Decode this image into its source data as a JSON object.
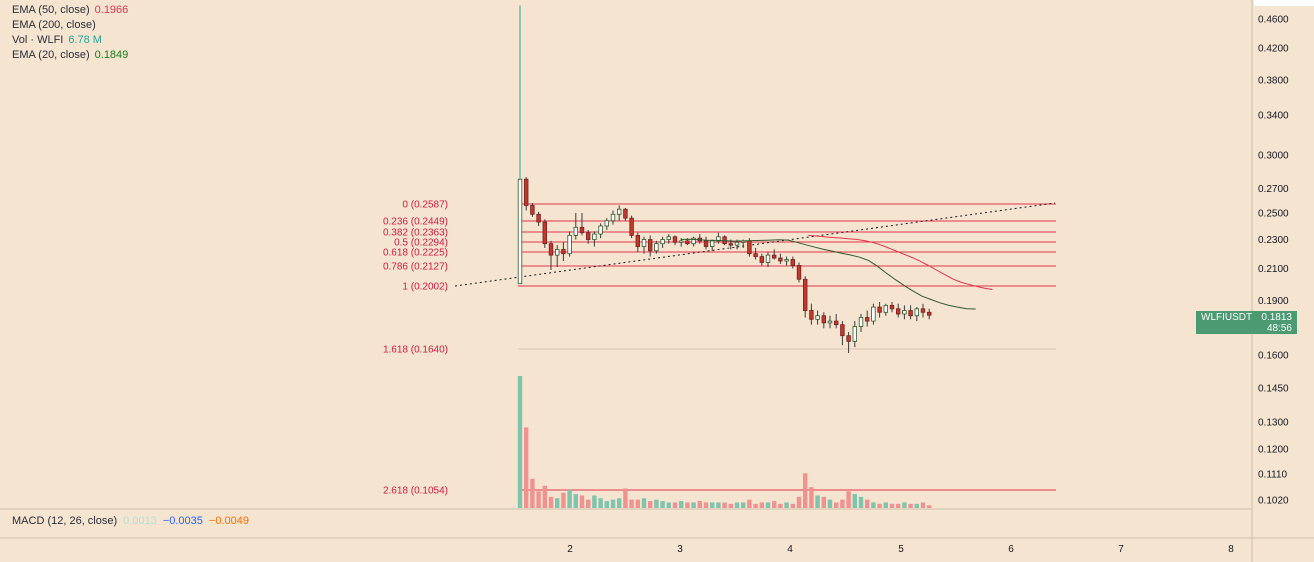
{
  "legend": {
    "ema50": {
      "label": "EMA (50, close)",
      "value": "0.1966",
      "color": "#e5334d"
    },
    "ema200": {
      "label": "EMA (200, close)",
      "value": ""
    },
    "vol": {
      "label": "Vol · WLFI",
      "value": "6.78 M",
      "color": "#26a69a"
    },
    "ema20": {
      "label": "EMA (20, close)",
      "value": "0.1849",
      "color": "#1b7a1b"
    }
  },
  "macd": {
    "label": "MACD (12, 26, close)",
    "v1": "0.0013",
    "v2": "−0.0035",
    "v3": "−0.0049",
    "v1_color": "#b2dfdb",
    "v2_color": "#2962ff",
    "v3_color": "#ff6d00"
  },
  "badge": {
    "symbol": "WLFIUSDT",
    "price": "0.1813",
    "countdown": "48:56"
  },
  "chart_data": {
    "type": "candlestick",
    "symbol": "WLFIUSDT",
    "scale": "log",
    "y_ticks": [
      "0.4600",
      "0.4200",
      "0.3800",
      "0.3400",
      "0.3000",
      "0.2700",
      "0.2500",
      "0.2300",
      "0.2100",
      "0.1900",
      "0.1600",
      "0.1450",
      "0.1300",
      "0.1200",
      "0.1110",
      "0.1020"
    ],
    "x_ticks": [
      "2",
      "3",
      "4",
      "5",
      "6",
      "7",
      "8"
    ],
    "last_price": 0.1813,
    "fib_levels": [
      {
        "label": "0 (0.2587)",
        "value": 0.2587
      },
      {
        "label": "0.236 (0.2449)",
        "value": 0.2449
      },
      {
        "label": "0.382 (0.2363)",
        "value": 0.2363
      },
      {
        "label": "0.5 (0.2294)",
        "value": 0.2294
      },
      {
        "label": "0.618 (0.2225)",
        "value": 0.2225
      },
      {
        "label": "0.786 (0.2127)",
        "value": 0.2127
      },
      {
        "label": "1 (0.2002)",
        "value": 0.2002
      },
      {
        "label": "1.618 (0.1640)",
        "value": 0.164
      },
      {
        "label": "2.618 (0.1054)",
        "value": 0.1054
      }
    ],
    "candles": [
      {
        "o": 0.2002,
        "h": 0.48,
        "l": 0.2,
        "c": 0.278
      },
      {
        "o": 0.278,
        "h": 0.28,
        "l": 0.252,
        "c": 0.256
      },
      {
        "o": 0.256,
        "h": 0.258,
        "l": 0.247,
        "c": 0.249
      },
      {
        "o": 0.249,
        "h": 0.251,
        "l": 0.24,
        "c": 0.243
      },
      {
        "o": 0.243,
        "h": 0.245,
        "l": 0.224,
        "c": 0.227
      },
      {
        "o": 0.227,
        "h": 0.229,
        "l": 0.209,
        "c": 0.219
      },
      {
        "o": 0.219,
        "h": 0.226,
        "l": 0.211,
        "c": 0.223
      },
      {
        "o": 0.223,
        "h": 0.228,
        "l": 0.215,
        "c": 0.22
      },
      {
        "o": 0.22,
        "h": 0.236,
        "l": 0.218,
        "c": 0.233
      },
      {
        "o": 0.233,
        "h": 0.25,
        "l": 0.23,
        "c": 0.239
      },
      {
        "o": 0.239,
        "h": 0.25,
        "l": 0.233,
        "c": 0.235
      },
      {
        "o": 0.235,
        "h": 0.237,
        "l": 0.227,
        "c": 0.23
      },
      {
        "o": 0.23,
        "h": 0.236,
        "l": 0.225,
        "c": 0.234
      },
      {
        "o": 0.234,
        "h": 0.242,
        "l": 0.231,
        "c": 0.24
      },
      {
        "o": 0.24,
        "h": 0.246,
        "l": 0.237,
        "c": 0.244
      },
      {
        "o": 0.244,
        "h": 0.252,
        "l": 0.241,
        "c": 0.249
      },
      {
        "o": 0.249,
        "h": 0.256,
        "l": 0.244,
        "c": 0.253
      },
      {
        "o": 0.253,
        "h": 0.254,
        "l": 0.244,
        "c": 0.246
      },
      {
        "o": 0.246,
        "h": 0.248,
        "l": 0.231,
        "c": 0.233
      },
      {
        "o": 0.233,
        "h": 0.235,
        "l": 0.221,
        "c": 0.225
      },
      {
        "o": 0.225,
        "h": 0.232,
        "l": 0.22,
        "c": 0.23
      },
      {
        "o": 0.23,
        "h": 0.233,
        "l": 0.218,
        "c": 0.222
      },
      {
        "o": 0.222,
        "h": 0.229,
        "l": 0.22,
        "c": 0.227
      },
      {
        "o": 0.227,
        "h": 0.232,
        "l": 0.224,
        "c": 0.23
      },
      {
        "o": 0.23,
        "h": 0.234,
        "l": 0.227,
        "c": 0.232
      },
      {
        "o": 0.232,
        "h": 0.233,
        "l": 0.226,
        "c": 0.228
      },
      {
        "o": 0.228,
        "h": 0.231,
        "l": 0.225,
        "c": 0.229
      },
      {
        "o": 0.229,
        "h": 0.231,
        "l": 0.226,
        "c": 0.227
      },
      {
        "o": 0.227,
        "h": 0.232,
        "l": 0.225,
        "c": 0.231
      },
      {
        "o": 0.231,
        "h": 0.234,
        "l": 0.227,
        "c": 0.229
      },
      {
        "o": 0.229,
        "h": 0.232,
        "l": 0.223,
        "c": 0.225
      },
      {
        "o": 0.225,
        "h": 0.23,
        "l": 0.222,
        "c": 0.229
      },
      {
        "o": 0.229,
        "h": 0.235,
        "l": 0.227,
        "c": 0.232
      },
      {
        "o": 0.232,
        "h": 0.233,
        "l": 0.226,
        "c": 0.227
      },
      {
        "o": 0.227,
        "h": 0.23,
        "l": 0.223,
        "c": 0.226
      },
      {
        "o": 0.226,
        "h": 0.23,
        "l": 0.223,
        "c": 0.228
      },
      {
        "o": 0.228,
        "h": 0.23,
        "l": 0.224,
        "c": 0.229
      },
      {
        "o": 0.229,
        "h": 0.231,
        "l": 0.218,
        "c": 0.22
      },
      {
        "o": 0.22,
        "h": 0.224,
        "l": 0.216,
        "c": 0.218
      },
      {
        "o": 0.218,
        "h": 0.22,
        "l": 0.212,
        "c": 0.214
      },
      {
        "o": 0.214,
        "h": 0.221,
        "l": 0.211,
        "c": 0.219
      },
      {
        "o": 0.219,
        "h": 0.223,
        "l": 0.216,
        "c": 0.217
      },
      {
        "o": 0.217,
        "h": 0.22,
        "l": 0.213,
        "c": 0.215
      },
      {
        "o": 0.215,
        "h": 0.218,
        "l": 0.212,
        "c": 0.216
      },
      {
        "o": 0.216,
        "h": 0.218,
        "l": 0.21,
        "c": 0.212
      },
      {
        "o": 0.212,
        "h": 0.214,
        "l": 0.201,
        "c": 0.203
      },
      {
        "o": 0.203,
        "h": 0.205,
        "l": 0.18,
        "c": 0.184
      },
      {
        "o": 0.184,
        "h": 0.188,
        "l": 0.176,
        "c": 0.179
      },
      {
        "o": 0.179,
        "h": 0.184,
        "l": 0.176,
        "c": 0.181
      },
      {
        "o": 0.181,
        "h": 0.183,
        "l": 0.174,
        "c": 0.177
      },
      {
        "o": 0.177,
        "h": 0.181,
        "l": 0.174,
        "c": 0.178
      },
      {
        "o": 0.178,
        "h": 0.182,
        "l": 0.174,
        "c": 0.176
      },
      {
        "o": 0.176,
        "h": 0.178,
        "l": 0.165,
        "c": 0.17
      },
      {
        "o": 0.17,
        "h": 0.172,
        "l": 0.161,
        "c": 0.167
      },
      {
        "o": 0.167,
        "h": 0.178,
        "l": 0.164,
        "c": 0.175
      },
      {
        "o": 0.175,
        "h": 0.182,
        "l": 0.172,
        "c": 0.18
      },
      {
        "o": 0.18,
        "h": 0.184,
        "l": 0.175,
        "c": 0.178
      },
      {
        "o": 0.178,
        "h": 0.188,
        "l": 0.176,
        "c": 0.186
      },
      {
        "o": 0.186,
        "h": 0.189,
        "l": 0.18,
        "c": 0.183
      },
      {
        "o": 0.183,
        "h": 0.188,
        "l": 0.181,
        "c": 0.187
      },
      {
        "o": 0.187,
        "h": 0.189,
        "l": 0.183,
        "c": 0.185
      },
      {
        "o": 0.185,
        "h": 0.188,
        "l": 0.18,
        "c": 0.182
      },
      {
        "o": 0.182,
        "h": 0.187,
        "l": 0.179,
        "c": 0.184
      },
      {
        "o": 0.184,
        "h": 0.187,
        "l": 0.179,
        "c": 0.181
      },
      {
        "o": 0.181,
        "h": 0.186,
        "l": 0.178,
        "c": 0.185
      },
      {
        "o": 0.185,
        "h": 0.188,
        "l": 0.18,
        "c": 0.183
      },
      {
        "o": 0.183,
        "h": 0.185,
        "l": 0.179,
        "c": 0.1813
      }
    ],
    "volume": [
      95,
      58,
      21,
      12,
      16,
      8,
      7,
      11,
      13,
      10,
      9,
      6,
      9,
      7,
      5,
      6,
      7,
      14,
      6,
      6,
      7,
      5,
      6,
      5,
      4,
      4,
      5,
      4,
      4,
      5,
      4,
      4,
      4,
      4,
      3,
      4,
      4,
      6,
      3,
      4,
      4,
      5,
      3,
      4,
      3,
      8,
      25,
      15,
      9,
      8,
      6,
      4,
      6,
      12,
      10,
      8,
      6,
      4,
      3,
      4,
      3,
      3,
      4,
      3,
      3,
      4,
      2
    ],
    "ema20": [
      0.23,
      0.2302,
      0.2298,
      0.2295,
      0.2294,
      0.2291,
      0.2289,
      0.229,
      0.2292,
      0.2294,
      0.2296,
      0.2298,
      0.2296,
      0.228,
      0.2262,
      0.2245,
      0.223,
      0.2217,
      0.2203,
      0.2191,
      0.2176,
      0.2154,
      0.2115,
      0.207,
      0.2028,
      0.199,
      0.1955,
      0.1925,
      0.1905,
      0.1885,
      0.187,
      0.186,
      0.185,
      0.1849
    ],
    "ema50": [
      0.233,
      0.2326,
      0.232,
      0.2315,
      0.2311,
      0.2306,
      0.2301,
      0.2292,
      0.228,
      0.2262,
      0.224,
      0.2218,
      0.2195,
      0.2173,
      0.2148,
      0.212,
      0.209,
      0.2061,
      0.2033,
      0.2012,
      0.1998,
      0.1985,
      0.1974,
      0.1966
    ]
  }
}
